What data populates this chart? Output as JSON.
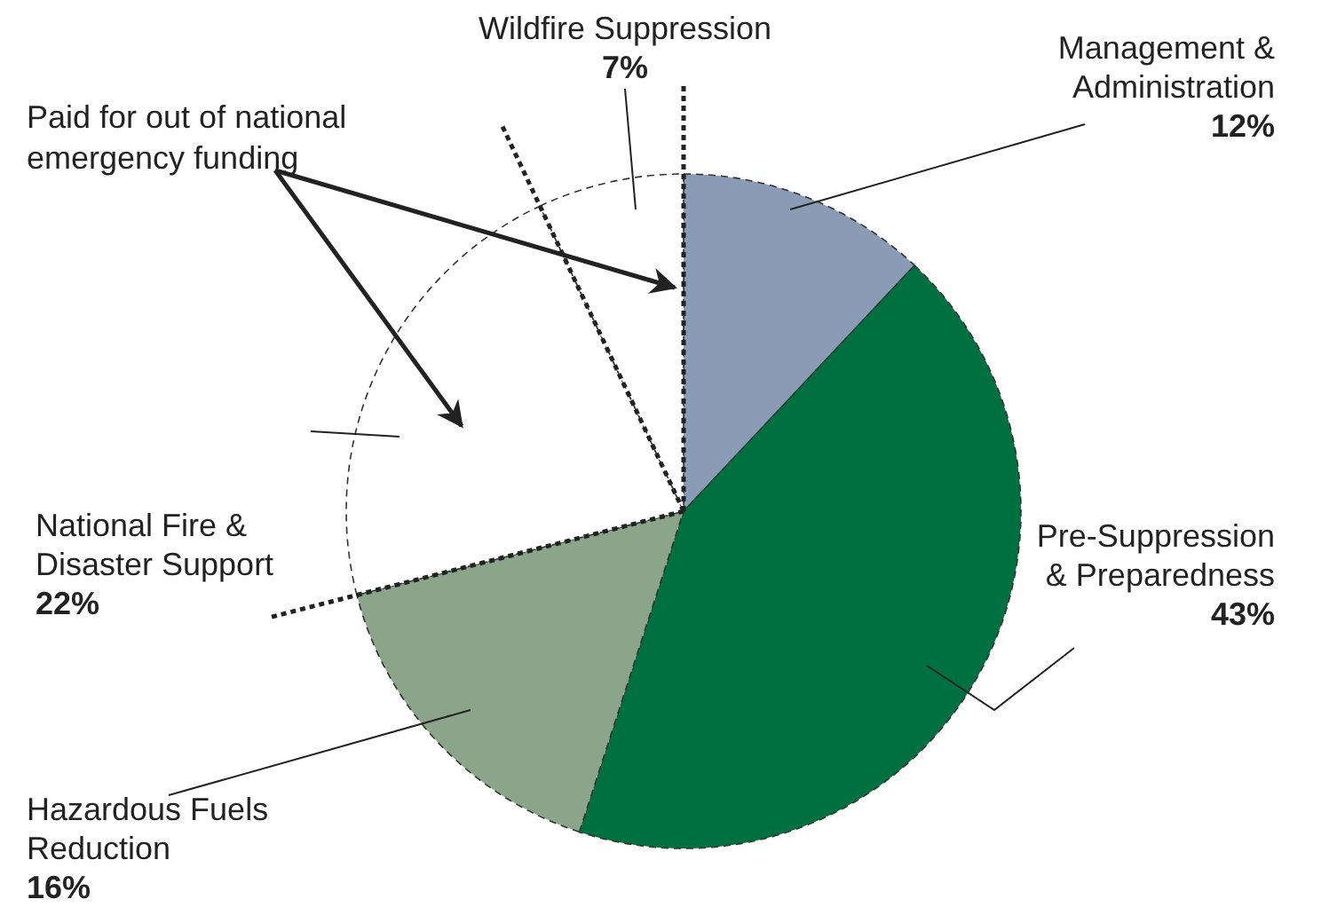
{
  "chart_data": {
    "type": "pie",
    "categories": [
      "Management & Administration",
      "Pre-Suppression & Preparedness",
      "Hazardous Fuels Reduction",
      "National Fire & Disaster Support",
      "Wildfire Suppression"
    ],
    "values": [
      12,
      43,
      16,
      22,
      7
    ],
    "value_labels": [
      "12%",
      "43%",
      "16%",
      "22%",
      "7%"
    ],
    "colors": [
      "#8a9bb5",
      "#007040",
      "#8aa58a",
      "#ffffff",
      "#ffffff"
    ],
    "annotations": [
      "Paid for out of national emergency funding"
    ]
  }
}
